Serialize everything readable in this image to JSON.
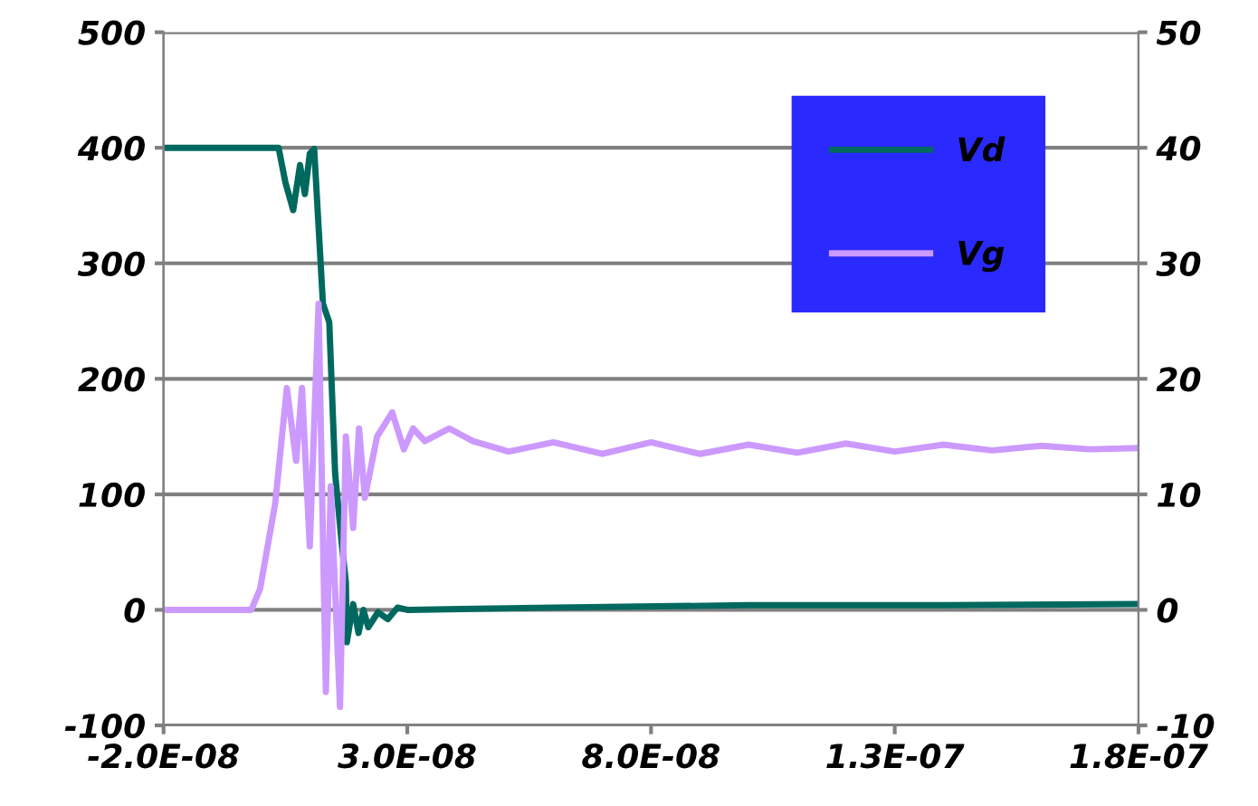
{
  "chart_data": {
    "type": "line",
    "xlim": [
      -2e-08,
      1.8e-07
    ],
    "xticks": [
      {
        "value": -2e-08,
        "label": "-2.0E-08"
      },
      {
        "value": 3e-08,
        "label": "3.0E-08"
      },
      {
        "value": 8e-08,
        "label": "8.0E-08"
      },
      {
        "value": 1.3e-07,
        "label": "1.3E-07"
      },
      {
        "value": 1.8e-07,
        "label": "1.8E-07"
      }
    ],
    "ylim": [
      -100,
      500
    ],
    "yticks": [
      -100,
      0,
      100,
      200,
      300,
      400,
      500
    ],
    "y2lim": [
      -10,
      50
    ],
    "y2ticks": [
      -10,
      0,
      10,
      20,
      30,
      40,
      50
    ],
    "grid": "y",
    "legend": "top right",
    "series": [
      {
        "name": "Vd",
        "color": "#00695f",
        "x": [
          -2e-08,
          3.6e-09,
          5e-09,
          6.6e-09,
          8e-09,
          9e-09,
          1e-08,
          1.09e-08,
          1.27e-08,
          1.4e-08,
          1.52e-08,
          1.65e-08,
          1.74e-08,
          1.76e-08,
          1.89e-08,
          2e-08,
          2.1e-08,
          2.2e-08,
          2.4e-08,
          2.6e-08,
          2.8e-08,
          3e-08,
          6e-08,
          1e-07,
          1.4e-07,
          1.8e-07
        ],
        "values": [
          400,
          400,
          370,
          346,
          385,
          360,
          395,
          399,
          265,
          249,
          118,
          60,
          24,
          -28,
          5,
          -20,
          0,
          -15,
          -2,
          -8,
          2,
          0,
          2,
          4,
          4,
          5
        ]
      },
      {
        "name": "Vg",
        "color": "#cc99ff",
        "axis": "y2",
        "x": [
          -2e-08,
          -2e-09,
          -2e-10,
          2.9e-09,
          5.3e-09,
          7.2e-09,
          8.4e-09,
          1e-08,
          1.18e-08,
          1.33e-08,
          1.43e-08,
          1.62e-08,
          1.74e-08,
          1.89e-08,
          2.01e-08,
          2.13e-08,
          2.38e-08,
          2.69e-08,
          2.93e-08,
          3.12e-08,
          3.36e-08,
          3.86e-08,
          4.35e-08,
          5.08e-08,
          6e-08,
          7e-08,
          8e-08,
          9e-08,
          1e-07,
          1.1e-07,
          1.2e-07,
          1.3e-07,
          1.4e-07,
          1.5e-07,
          1.6e-07,
          1.7e-07,
          1.8e-07
        ],
        "values": [
          0,
          0,
          1.8,
          9.2,
          19.2,
          12.9,
          19.2,
          5.5,
          26.5,
          -7.1,
          10.7,
          -8.4,
          15,
          7.1,
          15.7,
          9.7,
          15,
          17.1,
          13.9,
          15.7,
          14.6,
          15.7,
          14.6,
          13.7,
          14.5,
          13.5,
          14.5,
          13.5,
          14.3,
          13.6,
          14.4,
          13.7,
          14.3,
          13.8,
          14.2,
          13.9,
          14
        ]
      }
    ]
  }
}
